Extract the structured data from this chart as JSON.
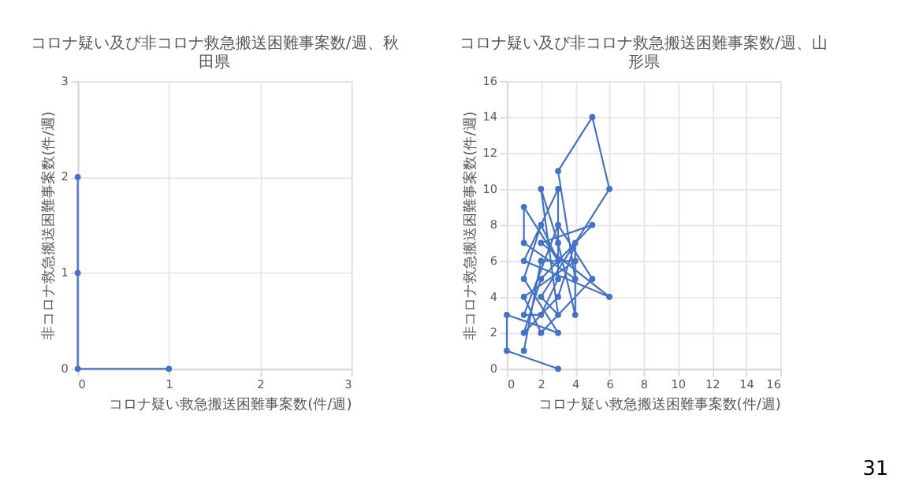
{
  "chart_data": [
    {
      "type": "line",
      "title": "コロナ疑い及び非コロナ救急搬送困難事案数/週、秋田県",
      "xlabel": "コロナ疑い救急搬送困難事案数(件/週)",
      "ylabel": "非コロナ救急搬送困難事案数(件/週)",
      "x": [
        1,
        0,
        0,
        0
      ],
      "series": [
        {
          "color": "#4472c4",
          "values": [
            0,
            0,
            1,
            2
          ]
        }
      ],
      "xlim": [
        0,
        3
      ],
      "xticks": [
        0,
        1,
        2,
        3
      ],
      "ylim": [
        0,
        3
      ],
      "yticks": [
        0,
        1,
        2,
        3
      ],
      "grid": true,
      "marker": "circle",
      "line_style": "solid"
    },
    {
      "type": "line",
      "title": "コロナ疑い及び非コロナ救急搬送困難事案数/週、山形県",
      "xlabel": "コロナ疑い救急搬送困難事案数(件/週)",
      "ylabel": "非コロナ救急搬送困難事案数(件/週)",
      "x": [
        3,
        0,
        0,
        3,
        1,
        2,
        3,
        1,
        1,
        4,
        3,
        5,
        6,
        2,
        3,
        2,
        3,
        4,
        4,
        3,
        1,
        2,
        5,
        2,
        6,
        1,
        3,
        3,
        2,
        1,
        3,
        5,
        2,
        1,
        4,
        2,
        1
      ],
      "series": [
        {
          "color": "#4472c4",
          "values": [
            0,
            1,
            3,
            2,
            5,
            8,
            6,
            9,
            7,
            5,
            11,
            14,
            10,
            4,
            3,
            10,
            7,
            3,
            7,
            4,
            2,
            5,
            8,
            7,
            4,
            6,
            10,
            5,
            3,
            3,
            8,
            5,
            2,
            4,
            6,
            6,
            1
          ]
        }
      ],
      "xlim": [
        0,
        16
      ],
      "xticks": [
        0,
        2,
        4,
        6,
        8,
        10,
        12,
        14,
        16
      ],
      "ylim": [
        0,
        16
      ],
      "yticks": [
        0,
        2,
        4,
        6,
        8,
        10,
        12,
        14,
        16
      ],
      "grid": true,
      "marker": "circle",
      "line_style": "solid",
      "annotations": [
        "31"
      ]
    }
  ]
}
